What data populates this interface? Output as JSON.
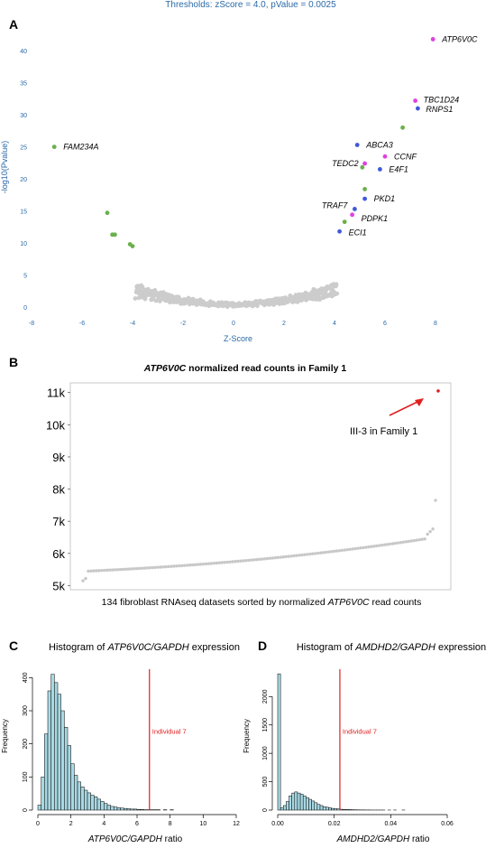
{
  "panels": {
    "A": {
      "letter": "A",
      "title": "Thresholds: zScore = 4.0, pValue = 0.0025",
      "chart_data": {
        "type": "scatter",
        "xlabel": "Z-Score",
        "ylabel": "-log10(Pvalue)",
        "xlim": [
          -8,
          9.5
        ],
        "ylim": [
          0,
          42
        ],
        "xticks": [
          "-8",
          "-6",
          "-4",
          "-2",
          "0",
          "2",
          "4",
          "6",
          "8"
        ],
        "yticks": [
          "0",
          "5",
          "10",
          "15",
          "20",
          "25",
          "30",
          "35",
          "40"
        ],
        "colors": {
          "background": "#cccccc",
          "green": "#6ab04c",
          "blue": "#4059d6",
          "magenta": "#e040e0",
          "axis": "#2b6aa8"
        },
        "labeled": [
          {
            "gene": "ATP6V0C",
            "x": 7.9,
            "y": 41.8,
            "color": "magenta"
          },
          {
            "gene": "TBC1D24",
            "x": 7.2,
            "y": 32.2,
            "color": "magenta"
          },
          {
            "gene": "RNPS1",
            "x": 7.3,
            "y": 31.0,
            "color": "blue"
          },
          {
            "gene": "FAM234A",
            "x": -7.1,
            "y": 25.0,
            "color": "green"
          },
          {
            "gene": "ABCA3",
            "x": 4.9,
            "y": 25.3,
            "color": "blue"
          },
          {
            "gene": "CCNF",
            "x": 6.0,
            "y": 23.5,
            "color": "magenta"
          },
          {
            "gene": "TEDC2",
            "x": 5.2,
            "y": 22.4,
            "color": "magenta"
          },
          {
            "gene": "E4F1",
            "x": 5.8,
            "y": 21.5,
            "color": "blue"
          },
          {
            "gene": "PKD1",
            "x": 5.2,
            "y": 16.9,
            "color": "blue"
          },
          {
            "gene": "TRAF7",
            "x": 4.8,
            "y": 15.3,
            "color": "blue"
          },
          {
            "gene": "PDPK1",
            "x": 4.7,
            "y": 14.4,
            "color": "magenta"
          },
          {
            "gene": "ECI1",
            "x": 4.2,
            "y": 11.8,
            "color": "blue"
          }
        ],
        "unlabeled": [
          {
            "x": 6.7,
            "y": 28.0,
            "color": "green"
          },
          {
            "x": 5.1,
            "y": 21.8,
            "color": "green"
          },
          {
            "x": 5.2,
            "y": 18.4,
            "color": "green"
          },
          {
            "x": 4.4,
            "y": 13.3,
            "color": "green"
          },
          {
            "x": -5.0,
            "y": 14.7,
            "color": "green"
          },
          {
            "x": -4.8,
            "y": 11.3,
            "color": "green"
          },
          {
            "x": -4.7,
            "y": 11.3,
            "color": "green"
          },
          {
            "x": -4.1,
            "y": 9.8,
            "color": "green"
          },
          {
            "x": -4.0,
            "y": 9.5,
            "color": "green"
          }
        ]
      }
    },
    "B": {
      "letter": "B",
      "title_italic": "ATP6V0C",
      "title_rest": " normalized read counts in Family 1",
      "annotation": "III-3 in Family 1",
      "xlabel_pre": "134 fibroblast RNAseq datasets sorted by normalized ",
      "xlabel_italic": "ATP6V0C",
      "xlabel_post": " read counts",
      "chart_data": {
        "type": "scatter",
        "n": 134,
        "ylim": [
          4900,
          11300
        ],
        "yticks": [
          "5k",
          "6k",
          "7k",
          "8k",
          "9k",
          "10k",
          "11k"
        ],
        "ytick_values": [
          5000,
          6000,
          7000,
          8000,
          9000,
          10000,
          11000
        ],
        "start": 5150,
        "low_run": [
          5150,
          5220
        ],
        "plateau_start": 5450,
        "plateau_end": 6450,
        "top_values": [
          6600,
          6680,
          6760,
          7650
        ],
        "outlier": 11050,
        "colors": {
          "points": "#c8c8c8",
          "outlier": "#e02020",
          "arrow": "#e02020"
        }
      }
    },
    "C": {
      "letter": "C",
      "title_pre": "Histogram of ",
      "title_italic": "ATP6V0C/GAPDH",
      "title_post": " expression",
      "xlabel_italic": "ATP6V0C/GAPDH",
      "xlabel_post": " ratio",
      "ylabel": "Frequency",
      "marker_label": "Individual 7",
      "chart_data": {
        "type": "bar",
        "xlim": [
          0,
          12
        ],
        "ylim": [
          0,
          420
        ],
        "xticks": [
          "0",
          "2",
          "4",
          "6",
          "8",
          "10",
          "12"
        ],
        "yticks": [
          "0",
          "100",
          "200",
          "300",
          "400"
        ],
        "bin_width": 0.2,
        "values": [
          15,
          100,
          230,
          360,
          410,
          385,
          350,
          300,
          250,
          195,
          140,
          105,
          85,
          70,
          60,
          52,
          45,
          40,
          33,
          26,
          20,
          15,
          11,
          9,
          7,
          6,
          5,
          4,
          3,
          3,
          2,
          2,
          1,
          1,
          1,
          1,
          1,
          0,
          1,
          0,
          1
        ],
        "marker": 6.75,
        "colors": {
          "bar": "#a8d8e3",
          "stroke": "#000000",
          "marker": "#e02020"
        }
      }
    },
    "D": {
      "letter": "D",
      "title_pre": "Histogram of ",
      "title_italic": "AMDHD2/GAPDH",
      "title_post": " expression",
      "xlabel_italic": "AMDHD2/GAPDH",
      "xlabel_post": " ratio",
      "ylabel": "Frequency",
      "marker_label": "Individual 7",
      "chart_data": {
        "type": "bar",
        "xlim": [
          0,
          0.075
        ],
        "ylim": [
          0,
          2450
        ],
        "xticks": [
          "0.00",
          "0.02",
          "0.04",
          "0.06"
        ],
        "yticks": [
          "0",
          "500",
          "1000",
          "1500",
          "2000"
        ],
        "bin_width": 0.001,
        "values": [
          2400,
          40,
          80,
          150,
          250,
          300,
          320,
          300,
          280,
          250,
          220,
          190,
          160,
          130,
          100,
          80,
          60,
          50,
          40,
          30,
          25,
          20,
          15,
          12,
          10,
          8,
          6,
          5,
          4,
          3,
          3,
          2,
          2,
          1,
          1,
          1,
          1,
          1,
          0,
          1,
          0,
          1,
          0,
          0,
          1
        ],
        "marker": 0.022,
        "colors": {
          "bar": "#a8d8e3",
          "stroke": "#000000",
          "marker": "#e02020"
        }
      }
    }
  }
}
